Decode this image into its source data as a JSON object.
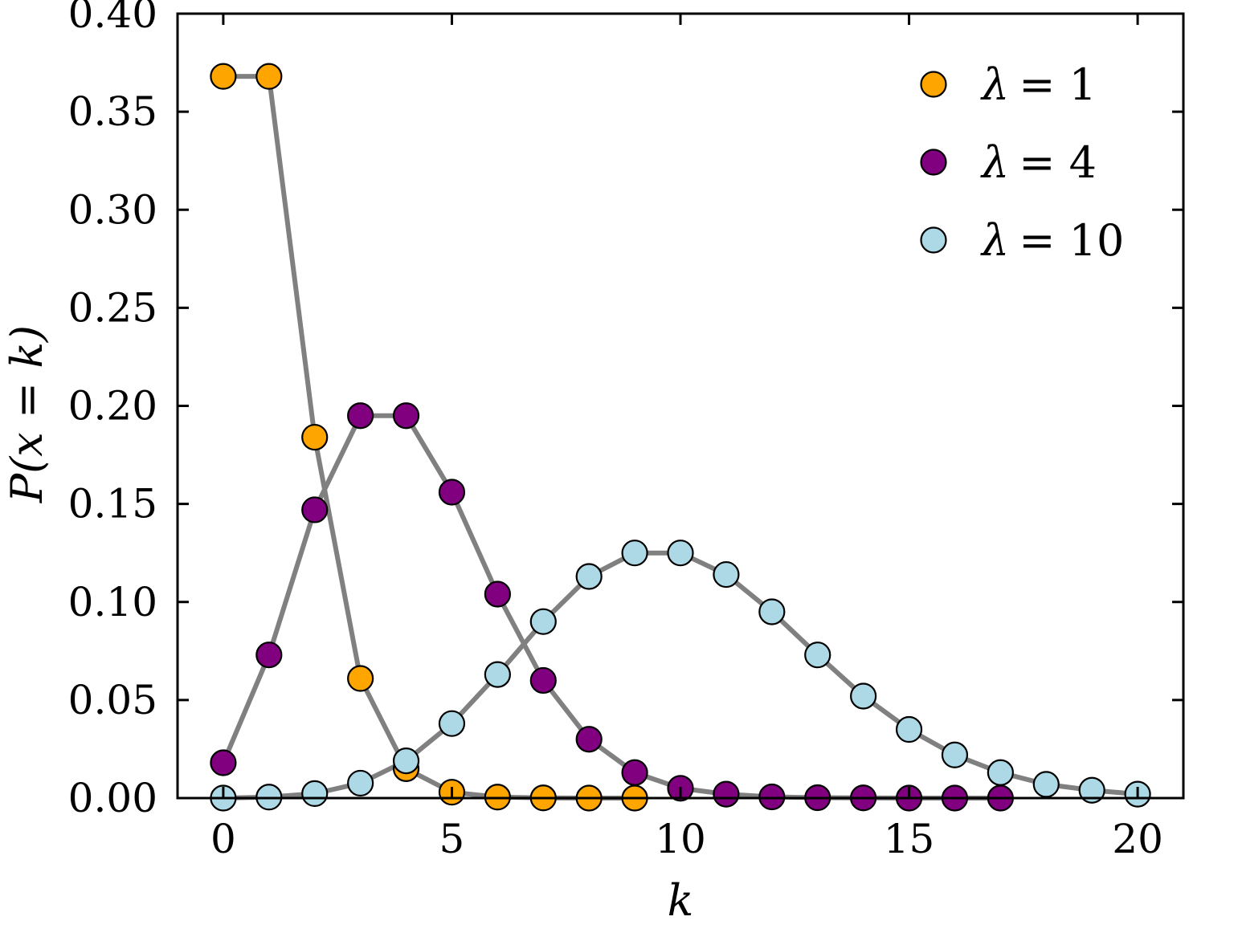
{
  "chart_data": {
    "type": "line",
    "xlabel": "k",
    "ylabel": "P(x = k)",
    "xlim": [
      -1,
      21
    ],
    "ylim": [
      0,
      0.4
    ],
    "xticks": [
      "0",
      "5",
      "10",
      "15",
      "20"
    ],
    "yticks": [
      "0.00",
      "0.05",
      "0.10",
      "0.15",
      "0.20",
      "0.25",
      "0.30",
      "0.35",
      "0.40"
    ],
    "grid": false,
    "legend_position": "top-right",
    "line_color": "#808080",
    "series": [
      {
        "name": "λ = 1",
        "legend_symbol": "λ",
        "legend_value": "= 1",
        "color": "#FFA500",
        "x": [
          0,
          1,
          2,
          3,
          4,
          5,
          6,
          7,
          8,
          9
        ],
        "values": [
          0.368,
          0.368,
          0.184,
          0.061,
          0.015,
          0.003,
          0.0005,
          0.0001,
          0.0,
          0.0
        ]
      },
      {
        "name": "λ = 4",
        "legend_symbol": "λ",
        "legend_value": "= 4",
        "color": "#800080",
        "x": [
          0,
          1,
          2,
          3,
          4,
          5,
          6,
          7,
          8,
          9,
          10,
          11,
          12,
          13,
          14,
          15,
          16,
          17
        ],
        "values": [
          0.018,
          0.073,
          0.147,
          0.195,
          0.195,
          0.156,
          0.104,
          0.06,
          0.03,
          0.013,
          0.005,
          0.002,
          0.0006,
          0.0002,
          0.0001,
          0.0,
          0.0,
          0.0
        ]
      },
      {
        "name": "λ = 10",
        "legend_symbol": "λ",
        "legend_value": "= 10",
        "color": "#ADD8E6",
        "x": [
          0,
          1,
          2,
          3,
          4,
          5,
          6,
          7,
          8,
          9,
          10,
          11,
          12,
          13,
          14,
          15,
          16,
          17,
          18,
          19,
          20
        ],
        "values": [
          0.0,
          0.0005,
          0.0023,
          0.0076,
          0.019,
          0.038,
          0.063,
          0.09,
          0.113,
          0.125,
          0.125,
          0.114,
          0.095,
          0.073,
          0.052,
          0.035,
          0.022,
          0.013,
          0.007,
          0.004,
          0.002
        ]
      }
    ]
  }
}
